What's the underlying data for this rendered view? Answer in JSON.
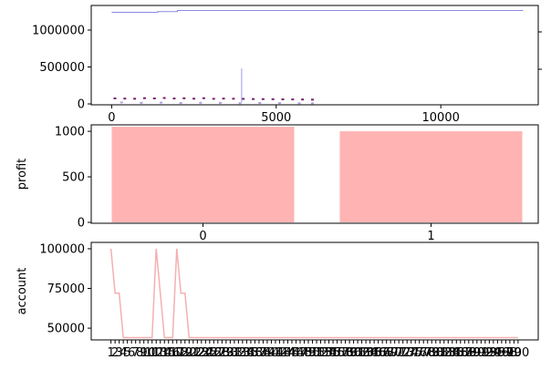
{
  "chart_data": [
    {
      "type": "line",
      "xlim": [
        -620,
        12960
      ],
      "ylim": [
        -12000,
        1333000
      ],
      "xticks": [
        0,
        5000,
        10000
      ],
      "yticks": [
        0,
        500000,
        1000000
      ],
      "series": [
        {
          "kind": "line",
          "color": "#8a8ae0",
          "x": [
            0,
            1400,
            1400,
            2000,
            2000,
            12500
          ],
          "values": [
            1240000,
            1240000,
            1250000,
            1250000,
            1265000,
            1265000
          ]
        },
        {
          "kind": "line",
          "color": "#9a9ae8",
          "x": [
            3950,
            3950
          ],
          "values": [
            20000,
            480000
          ]
        },
        {
          "kind": "scatter",
          "color": "#7a1f6e",
          "x": [
            100,
            400,
            700,
            1000,
            1300,
            1600,
            1900,
            2200,
            2500,
            2800,
            3100,
            3400,
            3700,
            4000,
            4300,
            4600,
            4900,
            5200,
            5500,
            5800,
            6100
          ],
          "values": [
            75000,
            72000,
            70000,
            78000,
            74000,
            80000,
            73000,
            76000,
            71000,
            77000,
            69000,
            72000,
            70000,
            68000,
            66000,
            65000,
            64000,
            62000,
            61000,
            60000,
            58000
          ]
        },
        {
          "kind": "scatter",
          "color": "#b0a0e0",
          "x": [
            300,
            900,
            1500,
            2100,
            2700,
            3300,
            3900,
            4500,
            5100,
            5700,
            6100
          ],
          "values": [
            20000,
            15000,
            18000,
            12000,
            16000,
            14000,
            10000,
            13000,
            11000,
            9000,
            8000
          ]
        }
      ]
    },
    {
      "type": "bar",
      "ylabel": "profit",
      "categories": [
        "0",
        "1"
      ],
      "values": [
        1050,
        1000
      ],
      "color": "#ffb3b3",
      "xlim": [
        -0.49,
        1.47
      ],
      "ylim": [
        -10,
        1071
      ],
      "yticks": [
        0,
        500,
        1000
      ]
    },
    {
      "type": "line",
      "ylabel": "account",
      "color": "#f4b0b0",
      "xlim": [
        -4.8,
        103.9
      ],
      "ylim": [
        42600,
        104000
      ],
      "yticks": [
        50000,
        75000,
        100000
      ],
      "categories": [
        "1",
        "2",
        "3",
        "4",
        "5",
        "6",
        "7",
        "8",
        "9",
        "10",
        "11",
        "12",
        "13",
        "14",
        "15",
        "16",
        "17",
        "18",
        "19",
        "20",
        "21",
        "22",
        "23",
        "24",
        "25",
        "26",
        "27",
        "28",
        "29",
        "30",
        "31",
        "32",
        "33",
        "34",
        "35",
        "36",
        "37",
        "38",
        "39",
        "40",
        "41",
        "42",
        "43",
        "44",
        "45",
        "46",
        "47",
        "48",
        "49",
        "50",
        "51",
        "52",
        "53",
        "54",
        "55",
        "56",
        "57",
        "58",
        "59",
        "60",
        "61",
        "62",
        "63",
        "64",
        "65",
        "66",
        "67",
        "68",
        "69",
        "70",
        "71",
        "72",
        "73",
        "74",
        "75",
        "76",
        "77",
        "78",
        "79",
        "80",
        "81",
        "82",
        "83",
        "84",
        "85",
        "86",
        "87",
        "88",
        "89",
        "90",
        "91",
        "92",
        "93",
        "94",
        "95",
        "96",
        "97",
        "98",
        "99",
        "100"
      ],
      "values": [
        100000,
        72000,
        72000,
        44000,
        44000,
        44000,
        44000,
        44000,
        44000,
        44000,
        44000,
        100000,
        72000,
        44000,
        44000,
        44000,
        100000,
        72000,
        72000,
        44000,
        44000,
        44000,
        44000,
        44000,
        44000,
        44000,
        44000,
        44000,
        44000,
        44000,
        44000,
        44000,
        44000,
        44000,
        44000,
        44000,
        44000,
        44000,
        44000,
        44000,
        44000,
        44000,
        44000,
        44000,
        44000,
        44000,
        44000,
        44000,
        44000,
        44000,
        44000,
        44000,
        44000,
        44000,
        44000,
        44000,
        44000,
        44000,
        44000,
        44000,
        44000,
        44000,
        44000,
        44000,
        44000,
        44000,
        44000,
        44000,
        44000,
        44000,
        44000,
        44000,
        44000,
        44000,
        44000,
        44000,
        44000,
        44000,
        44000,
        44000,
        44000,
        44000,
        44000,
        44000,
        44000,
        44000,
        44000,
        44000,
        44000,
        44000,
        44000,
        44000,
        44000,
        44000,
        44000,
        44000,
        44000,
        44000,
        44000,
        44000
      ]
    }
  ]
}
